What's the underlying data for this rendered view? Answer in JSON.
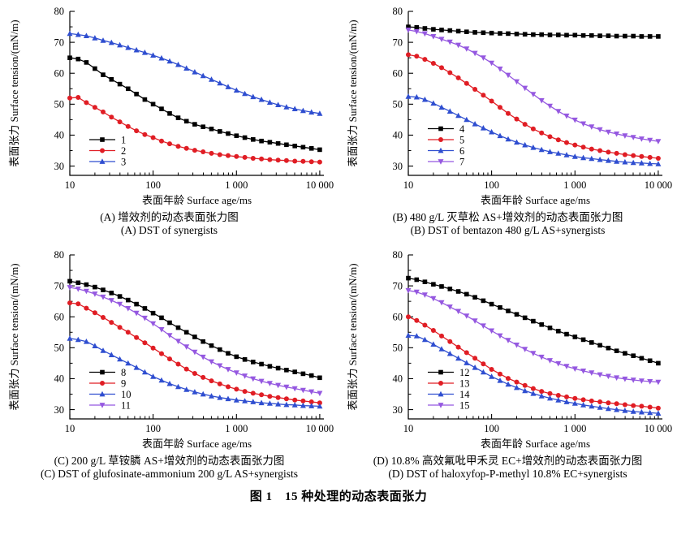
{
  "figure": {
    "title": "图 1　15 种处理的动态表面张力"
  },
  "colors": {
    "black": "#000000",
    "red": "#e01d24",
    "blue": "#2f4ed0",
    "violet": "#9558e0"
  },
  "axes": {
    "ylabel": "表面张力 Surface tension/(mN/m)",
    "xlabel": "表面年龄 Surface age/ms",
    "x_ticks": [
      "10",
      "100",
      "1 000",
      "10 000"
    ],
    "x_tick_values": [
      10,
      100,
      1000,
      10000
    ],
    "y_ticks": [
      30,
      40,
      50,
      60,
      70,
      80
    ],
    "ylim": [
      27,
      80
    ],
    "xlim_log": [
      10,
      11200
    ]
  },
  "chart_data": [
    {
      "type": "line",
      "panel": "A",
      "caption_zh": "(A) 增效剂的动态表面张力图",
      "caption_en": "(A) DST of synergists",
      "xscale": "log",
      "x": [
        10,
        12.6,
        15.8,
        20,
        25.1,
        31.6,
        39.8,
        50.1,
        63.1,
        79.4,
        100,
        126,
        158,
        200,
        251,
        316,
        398,
        501,
        631,
        794,
        1000,
        1259,
        1585,
        1995,
        2512,
        3162,
        3981,
        5012,
        6310,
        7943,
        10000
      ],
      "series": [
        {
          "name": "1",
          "color_key": "black",
          "marker": "square",
          "values": [
            65,
            64.6,
            63.5,
            61.5,
            59.5,
            58,
            56.5,
            55,
            53.3,
            51.5,
            50,
            48.5,
            47,
            45.6,
            44.5,
            43.5,
            42.7,
            42,
            41.2,
            40.5,
            39.8,
            39.2,
            38.6,
            38.1,
            37.7,
            37.3,
            36.9,
            36.5,
            36.1,
            35.7,
            35.3
          ]
        },
        {
          "name": "2",
          "color_key": "red",
          "marker": "circle",
          "values": [
            52,
            52.2,
            50.5,
            49,
            47.5,
            45.8,
            44.3,
            42.8,
            41.4,
            40.2,
            39.2,
            38.1,
            37.2,
            36.4,
            35.7,
            35.1,
            34.6,
            34.1,
            33.7,
            33.4,
            33.1,
            32.8,
            32.5,
            32.3,
            32.1,
            31.9,
            31.8,
            31.6,
            31.5,
            31.4,
            31.3
          ]
        },
        {
          "name": "3",
          "color_key": "blue",
          "marker": "triangle-up",
          "values": [
            72.8,
            72.5,
            72.1,
            71.4,
            70.6,
            69.9,
            69.1,
            68.3,
            67.5,
            66.7,
            65.8,
            64.9,
            63.9,
            62.8,
            61.6,
            60.4,
            59.2,
            58,
            56.8,
            55.6,
            54.5,
            53.4,
            52.4,
            51.5,
            50.6,
            49.8,
            49.1,
            48.5,
            47.9,
            47.4,
            47
          ]
        }
      ]
    },
    {
      "type": "line",
      "panel": "B",
      "caption_zh": "(B) 480 g/L 灭草松 AS+增效剂的动态表面张力图",
      "caption_en": "(B) DST of bentazon 480 g/L AS+synergists",
      "xscale": "log",
      "x": [
        10,
        12.6,
        15.8,
        20,
        25.1,
        31.6,
        39.8,
        50.1,
        63.1,
        79.4,
        100,
        126,
        158,
        200,
        251,
        316,
        398,
        501,
        631,
        794,
        1000,
        1259,
        1585,
        1995,
        2512,
        3162,
        3981,
        5012,
        6310,
        7943,
        10000
      ],
      "series": [
        {
          "name": "4",
          "color_key": "black",
          "marker": "square",
          "values": [
            75,
            74.8,
            74.5,
            74.2,
            74,
            73.8,
            73.6,
            73.4,
            73.2,
            73.1,
            73,
            72.9,
            72.8,
            72.7,
            72.6,
            72.5,
            72.5,
            72.4,
            72.4,
            72.3,
            72.3,
            72.2,
            72.2,
            72.1,
            72.1,
            72,
            72,
            72,
            71.9,
            71.9,
            71.9
          ]
        },
        {
          "name": "5",
          "color_key": "red",
          "marker": "circle",
          "values": [
            66,
            65.5,
            64.5,
            63.2,
            61.8,
            60.2,
            58.5,
            56.7,
            54.8,
            52.9,
            51,
            49,
            47,
            45.2,
            43.5,
            42,
            40.7,
            39.5,
            38.5,
            37.6,
            36.8,
            36.1,
            35.5,
            35,
            34.5,
            34.1,
            33.7,
            33.4,
            33.1,
            32.8,
            32.5
          ]
        },
        {
          "name": "6",
          "color_key": "blue",
          "marker": "triangle-up",
          "values": [
            52.5,
            52.3,
            51.5,
            50.3,
            49,
            47.7,
            46.3,
            45,
            43.6,
            42.3,
            41,
            39.8,
            38.7,
            37.7,
            36.8,
            36,
            35.3,
            34.6,
            34.1,
            33.6,
            33.1,
            32.7,
            32.4,
            32.1,
            31.8,
            31.5,
            31.3,
            31.1,
            31,
            30.8,
            30.7
          ]
        },
        {
          "name": "7",
          "color_key": "violet",
          "marker": "triangle-down",
          "values": [
            74,
            73.5,
            72.8,
            71.9,
            71,
            70.1,
            69.1,
            67.9,
            66.5,
            65,
            63.3,
            61.4,
            59.4,
            57.3,
            55.2,
            53.2,
            51.2,
            49.4,
            47.7,
            46.2,
            44.9,
            43.7,
            42.7,
            41.8,
            41,
            40.4,
            39.8,
            39.3,
            38.8,
            38.4,
            38
          ]
        }
      ]
    },
    {
      "type": "line",
      "panel": "C",
      "caption_zh": "(C) 200 g/L 草铵膦 AS+增效剂的动态表面张力图",
      "caption_en": "(C) DST of glufosinate-ammonium 200 g/L AS+synergists",
      "xscale": "log",
      "x": [
        10,
        12.6,
        15.8,
        20,
        25.1,
        31.6,
        39.8,
        50.1,
        63.1,
        79.4,
        100,
        126,
        158,
        200,
        251,
        316,
        398,
        501,
        631,
        794,
        1000,
        1259,
        1585,
        1995,
        2512,
        3162,
        3981,
        5012,
        6310,
        7943,
        10000
      ],
      "series": [
        {
          "name": "8",
          "color_key": "black",
          "marker": "square",
          "values": [
            71.5,
            71,
            70.4,
            69.6,
            68.7,
            67.7,
            66.6,
            65.4,
            64.1,
            62.7,
            61.2,
            59.7,
            58.1,
            56.5,
            55,
            53.5,
            52,
            50.7,
            49.4,
            48.2,
            47.1,
            46.2,
            45.4,
            44.7,
            44,
            43.4,
            42.8,
            42.2,
            41.6,
            41,
            40.3
          ]
        },
        {
          "name": "9",
          "color_key": "red",
          "marker": "circle",
          "values": [
            64.5,
            64.2,
            62.8,
            61.3,
            59.8,
            58.2,
            56.6,
            55,
            53.3,
            51.6,
            49.9,
            48.1,
            46.4,
            44.7,
            43.1,
            41.7,
            40.4,
            39.3,
            38.3,
            37.4,
            36.6,
            35.9,
            35.3,
            34.8,
            34.3,
            33.9,
            33.5,
            33.1,
            32.8,
            32.5,
            32.2
          ]
        },
        {
          "name": "10",
          "color_key": "blue",
          "marker": "triangle-up",
          "values": [
            53,
            52.6,
            52,
            50.6,
            49.1,
            47.7,
            46.3,
            45,
            43.6,
            42.1,
            40.7,
            39.5,
            38.4,
            37.4,
            36.5,
            35.7,
            35,
            34.4,
            33.9,
            33.5,
            33.1,
            32.8,
            32.5,
            32.2,
            32,
            31.8,
            31.6,
            31.5,
            31.3,
            31.2,
            31.1
          ]
        },
        {
          "name": "11",
          "color_key": "violet",
          "marker": "triangle-down",
          "values": [
            69.5,
            69,
            68.3,
            67.4,
            66.4,
            65.3,
            64.1,
            62.7,
            61.2,
            59.6,
            57.8,
            55.9,
            54,
            52.1,
            50.3,
            48.6,
            47,
            45.5,
            44.2,
            43,
            41.9,
            40.9,
            40,
            39.2,
            38.5,
            37.9,
            37.3,
            36.8,
            36.3,
            35.8,
            35.3
          ]
        }
      ]
    },
    {
      "type": "line",
      "panel": "D",
      "caption_zh": "(D) 10.8% 高效氟吡甲禾灵 EC+增效剂的动态表面张力图",
      "caption_en": "(D) DST of haloxyfop-P-methyl 10.8% EC+synergists",
      "xscale": "log",
      "x": [
        10,
        12.6,
        15.8,
        20,
        25.1,
        31.6,
        39.8,
        50.1,
        63.1,
        79.4,
        100,
        126,
        158,
        200,
        251,
        316,
        398,
        501,
        631,
        794,
        1000,
        1259,
        1585,
        1995,
        2512,
        3162,
        3981,
        5012,
        6310,
        7943,
        10000
      ],
      "series": [
        {
          "name": "12",
          "color_key": "black",
          "marker": "square",
          "values": [
            72.5,
            72,
            71.3,
            70.5,
            69.8,
            69,
            68.2,
            67.3,
            66.3,
            65.2,
            64.1,
            63,
            61.9,
            60.8,
            59.7,
            58.6,
            57.5,
            56.4,
            55.4,
            54.4,
            53.5,
            52.6,
            51.7,
            50.8,
            49.9,
            49,
            48.2,
            47.4,
            46.6,
            45.8,
            45
          ]
        },
        {
          "name": "13",
          "color_key": "red",
          "marker": "circle",
          "values": [
            60,
            58.8,
            57.3,
            55.6,
            53.8,
            52,
            50.2,
            48.4,
            46.6,
            44.8,
            43,
            41.5,
            40.1,
            38.9,
            37.8,
            36.8,
            35.9,
            35.2,
            34.6,
            34.1,
            33.6,
            33.2,
            32.8,
            32.5,
            32.2,
            31.9,
            31.6,
            31.3,
            31.1,
            30.8,
            30.5
          ]
        },
        {
          "name": "14",
          "color_key": "blue",
          "marker": "triangle-up",
          "values": [
            54,
            53.8,
            52.6,
            51.1,
            49.6,
            48.1,
            46.6,
            45.1,
            43.6,
            42.1,
            40.7,
            39.4,
            38.2,
            37.1,
            36.1,
            35.2,
            34.4,
            33.7,
            33.1,
            32.5,
            32,
            31.5,
            31.1,
            30.7,
            30.3,
            30,
            29.7,
            29.4,
            29.2,
            29,
            28.8
          ]
        },
        {
          "name": "15",
          "color_key": "violet",
          "marker": "triangle-down",
          "values": [
            68.5,
            68,
            67.1,
            65.9,
            64.6,
            63.2,
            61.8,
            60.3,
            58.7,
            57.1,
            55.5,
            53.9,
            52.4,
            50.9,
            49.5,
            48.2,
            47,
            45.9,
            44.9,
            44,
            43.2,
            42.5,
            41.9,
            41.3,
            40.8,
            40.3,
            39.9,
            39.6,
            39.3,
            39.1,
            38.9
          ]
        }
      ]
    }
  ]
}
